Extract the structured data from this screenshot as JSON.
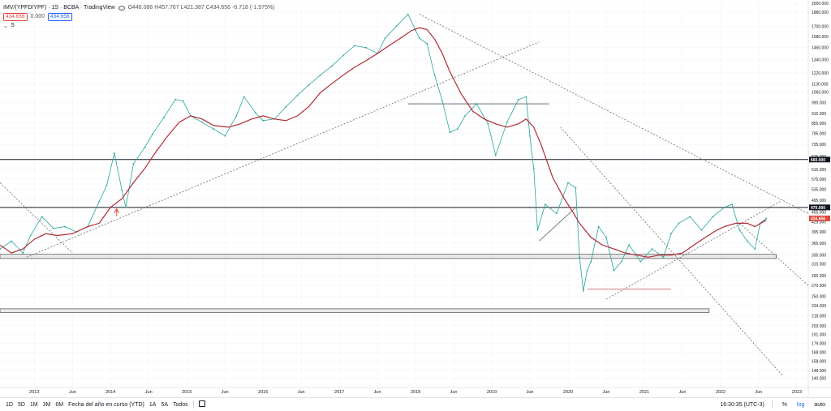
{
  "legend": {
    "symbol": "IMV/(YPFD/YPF) · 1S · BCBA · TradingView",
    "ohlc": "O448.086  H457.767  L421.387  C434.656  -6.718 (-1.975%)",
    "price_tag": "434.656",
    "zero_tag": "0.000",
    "price_tag2": "434.656",
    "indicator_count": "5"
  },
  "toolbar": {
    "ranges": [
      "1D",
      "5D",
      "1M",
      "3M",
      "6M",
      "Fecha del año en curso (YTD)",
      "1A",
      "5A",
      "Todos"
    ],
    "time": "16:30:35 (UTC-3)",
    "pct": "%",
    "log": "log",
    "auto": "auto"
  },
  "chart_data": {
    "type": "line",
    "title": "",
    "xlabel": "",
    "ylabel": "",
    "yscale": "log",
    "ylim": [
      131,
      2000
    ],
    "y_ticks": [
      2000,
      1880,
      1700,
      1580,
      1460,
      1340,
      1220,
      1130,
      1065,
      990,
      915,
      855,
      795,
      735,
      675,
      615,
      575,
      535,
      495,
      455,
      425,
      395,
      365,
      335,
      315,
      290,
      270,
      250,
      234,
      218,
      203,
      191,
      179,
      168,
      158,
      148,
      140
    ],
    "x_ticks": [
      "2013",
      "Jun",
      "2014",
      "Jun",
      "2015",
      "Jun",
      "2016",
      "Jun",
      "2017",
      "Jun",
      "2018",
      "Jun",
      "2019",
      "Jun",
      "2020",
      "Jun",
      "2021",
      "Jun",
      "2022",
      "Jun",
      "2023"
    ],
    "xlim": [
      2012.55,
      2023.15
    ],
    "price_labels": [
      {
        "value": 660,
        "label": "660.000",
        "color": "#131722"
      },
      {
        "value": 470,
        "label": "470.000",
        "color": "#131722"
      },
      {
        "value": 434.656,
        "label": "434.656",
        "color": "#e0463b"
      }
    ],
    "series": [
      {
        "color": "#26a69a",
        "x": [
          2012.55,
          2012.7,
          2012.85,
          2012.95,
          2013.1,
          2013.25,
          2013.4,
          2013.55,
          2013.7,
          2013.85,
          2013.95,
          2014.05,
          2014.15,
          2014.2,
          2014.3,
          2014.45,
          2014.55,
          2014.7,
          2014.85,
          2014.95,
          2015.05,
          2015.2,
          2015.35,
          2015.5,
          2015.65,
          2015.75,
          2015.9,
          2016.0,
          2016.15,
          2016.3,
          2016.45,
          2016.6,
          2016.75,
          2016.9,
          2017.05,
          2017.2,
          2017.35,
          2017.5,
          2017.6,
          2017.75,
          2017.9,
          2018.0,
          2018.05,
          2018.15,
          2018.25,
          2018.35,
          2018.45,
          2018.55,
          2018.65,
          2018.8,
          2018.95,
          2019.05,
          2019.2,
          2019.35,
          2019.45,
          2019.5,
          2019.55,
          2019.6,
          2019.7,
          2019.85,
          2020.0,
          2020.1,
          2020.15,
          2020.2,
          2020.25,
          2020.3,
          2020.4,
          2020.5,
          2020.6,
          2020.7,
          2020.8,
          2020.95,
          2021.1,
          2021.25,
          2021.35,
          2021.45,
          2021.6,
          2021.75,
          2021.9,
          2022.05,
          2022.15,
          2022.25,
          2022.35,
          2022.45,
          2022.52,
          2022.6
        ],
        "values": [
          350,
          370,
          340,
          385,
          440,
          405,
          410,
          395,
          410,
          490,
          550,
          690,
          530,
          470,
          640,
          720,
          790,
          890,
          1010,
          1000,
          900,
          860,
          820,
          780,
          900,
          1030,
          920,
          870,
          880,
          960,
          1040,
          1120,
          1200,
          1280,
          1380,
          1480,
          1460,
          1400,
          1560,
          1700,
          1850,
          1650,
          1560,
          1500,
          1200,
          1000,
          800,
          820,
          900,
          980,
          850,
          680,
          860,
          1010,
          1030,
          780,
          620,
          400,
          480,
          450,
          560,
          540,
          330,
          260,
          300,
          320,
          410,
          380,
          300,
          320,
          360,
          320,
          350,
          330,
          390,
          420,
          440,
          400,
          440,
          470,
          480,
          400,
          370,
          350,
          420,
          435
        ]
      },
      {
        "color": "#b22833",
        "x": [
          2012.55,
          2012.7,
          2012.85,
          2013.0,
          2013.15,
          2013.3,
          2013.5,
          2013.7,
          2013.85,
          2014.0,
          2014.15,
          2014.3,
          2014.45,
          2014.6,
          2014.75,
          2014.9,
          2015.05,
          2015.2,
          2015.35,
          2015.55,
          2015.7,
          2015.85,
          2016.0,
          2016.15,
          2016.3,
          2016.45,
          2016.6,
          2016.75,
          2016.9,
          2017.05,
          2017.2,
          2017.35,
          2017.5,
          2017.65,
          2017.8,
          2017.95,
          2018.05,
          2018.15,
          2018.25,
          2018.35,
          2018.45,
          2018.6,
          2018.75,
          2018.9,
          2019.05,
          2019.2,
          2019.35,
          2019.45,
          2019.55,
          2019.65,
          2019.8,
          2019.95,
          2020.05,
          2020.15,
          2020.3,
          2020.45,
          2020.6,
          2020.75,
          2020.9,
          2021.05,
          2021.2,
          2021.35,
          2021.5,
          2021.65,
          2021.8,
          2021.95,
          2022.05,
          2022.2,
          2022.35,
          2022.45,
          2022.6
        ],
        "values": [
          360,
          340,
          350,
          375,
          390,
          385,
          390,
          410,
          420,
          470,
          500,
          560,
          620,
          700,
          780,
          860,
          900,
          880,
          840,
          830,
          850,
          880,
          900,
          880,
          870,
          900,
          960,
          1060,
          1130,
          1200,
          1270,
          1330,
          1400,
          1480,
          1560,
          1650,
          1680,
          1660,
          1550,
          1400,
          1230,
          1050,
          930,
          880,
          850,
          830,
          850,
          880,
          830,
          730,
          580,
          500,
          460,
          420,
          380,
          360,
          350,
          340,
          335,
          330,
          335,
          335,
          340,
          360,
          380,
          400,
          410,
          420,
          420,
          410,
          430
        ]
      }
    ],
    "annotations": [
      {
        "type": "hline",
        "value": 660
      },
      {
        "type": "hline",
        "value": 470
      },
      {
        "type": "hline",
        "value": 980,
        "x_from": 2017.9,
        "x_to": 2019.75
      },
      {
        "type": "hline",
        "value": 263,
        "x_from": 2020.25,
        "x_to": 2021.35
      },
      {
        "type": "band",
        "from": 327,
        "to": 337,
        "x_from": 2012.55,
        "x_to": 2022.73
      },
      {
        "type": "band",
        "from": 223,
        "to": 229,
        "x_from": 2012.55,
        "x_to": 2021.85
      },
      {
        "type": "trend",
        "from": [
          2012.55,
          560
        ],
        "to": [
          2013.5,
          340
        ],
        "style": "dashed"
      },
      {
        "type": "trend",
        "from": [
          2012.9,
          330
        ],
        "to": [
          2019.62,
          1520
        ],
        "style": "dashed"
      },
      {
        "type": "trend",
        "from": [
          2018.05,
          1850
        ],
        "to": [
          2023.15,
          450
        ],
        "style": "dashed"
      },
      {
        "type": "trend",
        "from": [
          2019.9,
          830
        ],
        "to": [
          2022.82,
          142
        ],
        "style": "dashed"
      },
      {
        "type": "trend",
        "from": [
          2020.5,
          245
        ],
        "to": [
          2022.78,
          490
        ],
        "style": "dashed"
      },
      {
        "type": "trend",
        "from": [
          2022.25,
          420
        ],
        "to": [
          2023.15,
          270
        ],
        "style": "dashed"
      },
      {
        "type": "trend",
        "from": [
          2019.62,
          370
        ],
        "to": [
          2020.1,
          470
        ],
        "style": "solid"
      },
      {
        "type": "marker",
        "x": 2014.08,
        "value": 460
      }
    ]
  }
}
